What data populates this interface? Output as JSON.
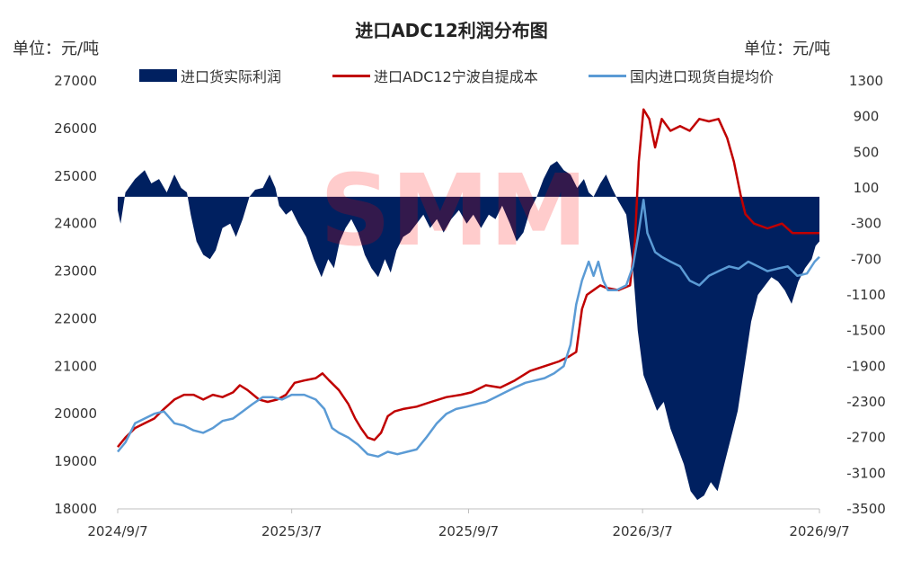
{
  "chart_data": {
    "type": "area+line",
    "title": "进口ADC12利润分布图",
    "ylabel_left": "单位：元/吨",
    "ylabel_right": "单位：元/吨",
    "x_tick_labels": [
      "2024/9/7",
      "2025/3/7",
      "2025/9/7",
      "2026/3/7",
      "2026/9/7"
    ],
    "x_range": [
      "2024-09-07",
      "2026-09-07"
    ],
    "ylim_left": [
      18000,
      27000
    ],
    "yticks_left": [
      18000,
      19000,
      20000,
      21000,
      22000,
      23000,
      24000,
      25000,
      26000,
      27000
    ],
    "ylim_right": [
      -3500,
      1300
    ],
    "yticks_right": [
      -3500,
      -3100,
      -2700,
      -2300,
      -1900,
      -1500,
      -1100,
      -700,
      -300,
      100,
      500,
      900,
      1300
    ],
    "legend_position": "top",
    "series": [
      {
        "name": "进口货实际利润",
        "kind": "area",
        "axis": "right",
        "color": "#002060",
        "points": [
          [
            "2024-09-07",
            -150
          ],
          [
            "2024-09-10",
            -300
          ],
          [
            "2024-09-15",
            50
          ],
          [
            "2024-09-25",
            200
          ],
          [
            "2024-10-05",
            300
          ],
          [
            "2024-10-12",
            150
          ],
          [
            "2024-10-20",
            200
          ],
          [
            "2024-10-28",
            50
          ],
          [
            "2024-11-05",
            250
          ],
          [
            "2024-11-12",
            100
          ],
          [
            "2024-11-18",
            50
          ],
          [
            "2024-11-22",
            -200
          ],
          [
            "2024-11-28",
            -500
          ],
          [
            "2024-12-05",
            -650
          ],
          [
            "2024-12-12",
            -700
          ],
          [
            "2024-12-18",
            -600
          ],
          [
            "2024-12-25",
            -350
          ],
          [
            "2025-01-02",
            -300
          ],
          [
            "2025-01-08",
            -450
          ],
          [
            "2025-01-15",
            -250
          ],
          [
            "2025-01-22",
            0
          ],
          [
            "2025-01-28",
            80
          ],
          [
            "2025-02-05",
            100
          ],
          [
            "2025-02-12",
            250
          ],
          [
            "2025-02-18",
            100
          ],
          [
            "2025-02-22",
            -100
          ],
          [
            "2025-03-01",
            -200
          ],
          [
            "2025-03-07",
            -150
          ],
          [
            "2025-03-14",
            -300
          ],
          [
            "2025-03-22",
            -450
          ],
          [
            "2025-03-30",
            -700
          ],
          [
            "2025-04-07",
            -900
          ],
          [
            "2025-04-14",
            -700
          ],
          [
            "2025-04-20",
            -800
          ],
          [
            "2025-04-26",
            -500
          ],
          [
            "2025-05-02",
            -350
          ],
          [
            "2025-05-08",
            -250
          ],
          [
            "2025-05-15",
            -400
          ],
          [
            "2025-05-22",
            -650
          ],
          [
            "2025-05-29",
            -800
          ],
          [
            "2025-06-05",
            -900
          ],
          [
            "2025-06-12",
            -700
          ],
          [
            "2025-06-18",
            -850
          ],
          [
            "2025-06-24",
            -600
          ],
          [
            "2025-07-01",
            -450
          ],
          [
            "2025-07-08",
            -400
          ],
          [
            "2025-07-15",
            -300
          ],
          [
            "2025-07-22",
            -200
          ],
          [
            "2025-07-29",
            -350
          ],
          [
            "2025-08-05",
            -250
          ],
          [
            "2025-08-12",
            -400
          ],
          [
            "2025-08-20",
            -250
          ],
          [
            "2025-08-28",
            -150
          ],
          [
            "2025-09-05",
            -300
          ],
          [
            "2025-09-12",
            -200
          ],
          [
            "2025-09-20",
            -350
          ],
          [
            "2025-09-28",
            -200
          ],
          [
            "2025-10-05",
            -250
          ],
          [
            "2025-10-12",
            -100
          ],
          [
            "2025-10-20",
            -300
          ],
          [
            "2025-10-27",
            -500
          ],
          [
            "2025-11-03",
            -400
          ],
          [
            "2025-11-10",
            -150
          ],
          [
            "2025-11-17",
            0
          ],
          [
            "2025-11-24",
            200
          ],
          [
            "2025-12-01",
            350
          ],
          [
            "2025-12-08",
            400
          ],
          [
            "2025-12-15",
            300
          ],
          [
            "2025-12-22",
            250
          ],
          [
            "2025-12-29",
            100
          ],
          [
            "2026-01-05",
            200
          ],
          [
            "2026-01-10",
            50
          ],
          [
            "2026-01-15",
            0
          ],
          [
            "2026-01-22",
            150
          ],
          [
            "2026-01-28",
            250
          ],
          [
            "2026-02-03",
            100
          ],
          [
            "2026-02-10",
            -50
          ],
          [
            "2026-02-18",
            -200
          ],
          [
            "2026-02-25",
            -800
          ],
          [
            "2026-03-02",
            -1500
          ],
          [
            "2026-03-08",
            -2000
          ],
          [
            "2026-03-15",
            -2200
          ],
          [
            "2026-03-22",
            -2400
          ],
          [
            "2026-03-29",
            -2300
          ],
          [
            "2026-04-05",
            -2600
          ],
          [
            "2026-04-12",
            -2800
          ],
          [
            "2026-04-19",
            -3000
          ],
          [
            "2026-04-26",
            -3300
          ],
          [
            "2026-05-03",
            -3400
          ],
          [
            "2026-05-10",
            -3350
          ],
          [
            "2026-05-17",
            -3200
          ],
          [
            "2026-05-24",
            -3300
          ],
          [
            "2026-05-31",
            -3000
          ],
          [
            "2026-06-07",
            -2700
          ],
          [
            "2026-06-14",
            -2400
          ],
          [
            "2026-06-21",
            -1900
          ],
          [
            "2026-06-28",
            -1400
          ],
          [
            "2026-07-05",
            -1100
          ],
          [
            "2026-07-12",
            -1000
          ],
          [
            "2026-07-19",
            -900
          ],
          [
            "2026-07-26",
            -950
          ],
          [
            "2026-08-02",
            -1050
          ],
          [
            "2026-08-09",
            -1200
          ],
          [
            "2026-08-16",
            -950
          ],
          [
            "2026-08-23",
            -800
          ],
          [
            "2026-08-30",
            -700
          ],
          [
            "2026-09-03",
            -550
          ],
          [
            "2026-09-07",
            -500
          ]
        ]
      },
      {
        "name": "进口ADC12宁波自提成本",
        "kind": "line",
        "axis": "left",
        "color": "#c00000",
        "points": [
          [
            "2024-09-07",
            19300
          ],
          [
            "2024-09-15",
            19500
          ],
          [
            "2024-09-25",
            19700
          ],
          [
            "2024-10-05",
            19800
          ],
          [
            "2024-10-15",
            19900
          ],
          [
            "2024-10-25",
            20100
          ],
          [
            "2024-11-05",
            20300
          ],
          [
            "2024-11-15",
            20400
          ],
          [
            "2024-11-25",
            20400
          ],
          [
            "2024-12-05",
            20300
          ],
          [
            "2024-12-15",
            20400
          ],
          [
            "2024-12-25",
            20350
          ],
          [
            "2025-01-05",
            20450
          ],
          [
            "2025-01-12",
            20600
          ],
          [
            "2025-01-20",
            20500
          ],
          [
            "2025-02-01",
            20300
          ],
          [
            "2025-02-10",
            20250
          ],
          [
            "2025-02-20",
            20300
          ],
          [
            "2025-03-01",
            20400
          ],
          [
            "2025-03-10",
            20650
          ],
          [
            "2025-03-20",
            20700
          ],
          [
            "2025-04-01",
            20750
          ],
          [
            "2025-04-08",
            20850
          ],
          [
            "2025-04-15",
            20700
          ],
          [
            "2025-04-25",
            20500
          ],
          [
            "2025-05-05",
            20200
          ],
          [
            "2025-05-12",
            19900
          ],
          [
            "2025-05-18",
            19700
          ],
          [
            "2025-05-25",
            19500
          ],
          [
            "2025-06-01",
            19450
          ],
          [
            "2025-06-08",
            19600
          ],
          [
            "2025-06-15",
            19950
          ],
          [
            "2025-06-22",
            20050
          ],
          [
            "2025-07-01",
            20100
          ],
          [
            "2025-07-15",
            20150
          ],
          [
            "2025-07-30",
            20250
          ],
          [
            "2025-08-15",
            20350
          ],
          [
            "2025-08-30",
            20400
          ],
          [
            "2025-09-10",
            20450
          ],
          [
            "2025-09-25",
            20600
          ],
          [
            "2025-10-10",
            20550
          ],
          [
            "2025-10-25",
            20700
          ],
          [
            "2025-11-10",
            20900
          ],
          [
            "2025-11-25",
            21000
          ],
          [
            "2025-12-10",
            21100
          ],
          [
            "2025-12-20",
            21200
          ],
          [
            "2025-12-28",
            21300
          ],
          [
            "2026-01-03",
            22200
          ],
          [
            "2026-01-08",
            22500
          ],
          [
            "2026-01-15",
            22600
          ],
          [
            "2026-01-22",
            22700
          ],
          [
            "2026-01-28",
            22650
          ],
          [
            "2026-02-10",
            22600
          ],
          [
            "2026-02-22",
            22700
          ],
          [
            "2026-02-27",
            23600
          ],
          [
            "2026-03-03",
            25300
          ],
          [
            "2026-03-08",
            26400
          ],
          [
            "2026-03-14",
            26200
          ],
          [
            "2026-03-20",
            25600
          ],
          [
            "2026-03-27",
            26200
          ],
          [
            "2026-04-05",
            25950
          ],
          [
            "2026-04-15",
            26050
          ],
          [
            "2026-04-25",
            25950
          ],
          [
            "2026-05-05",
            26200
          ],
          [
            "2026-05-15",
            26150
          ],
          [
            "2026-05-25",
            26200
          ],
          [
            "2026-06-03",
            25800
          ],
          [
            "2026-06-10",
            25300
          ],
          [
            "2026-06-17",
            24600
          ],
          [
            "2026-06-22",
            24200
          ],
          [
            "2026-07-01",
            24000
          ],
          [
            "2026-07-15",
            23900
          ],
          [
            "2026-07-30",
            24000
          ],
          [
            "2026-08-10",
            23800
          ],
          [
            "2026-08-25",
            23800
          ],
          [
            "2026-09-07",
            23800
          ]
        ]
      },
      {
        "name": "国内进口现货自提均价",
        "kind": "line",
        "axis": "left",
        "color": "#5b9bd5",
        "points": [
          [
            "2024-09-07",
            19200
          ],
          [
            "2024-09-15",
            19400
          ],
          [
            "2024-09-25",
            19800
          ],
          [
            "2024-10-05",
            19900
          ],
          [
            "2024-10-15",
            20000
          ],
          [
            "2024-10-25",
            20050
          ],
          [
            "2024-11-05",
            19800
          ],
          [
            "2024-11-15",
            19750
          ],
          [
            "2024-11-25",
            19650
          ],
          [
            "2024-12-05",
            19600
          ],
          [
            "2024-12-15",
            19700
          ],
          [
            "2024-12-25",
            19850
          ],
          [
            "2025-01-05",
            19900
          ],
          [
            "2025-01-15",
            20050
          ],
          [
            "2025-01-25",
            20200
          ],
          [
            "2025-02-05",
            20350
          ],
          [
            "2025-02-15",
            20350
          ],
          [
            "2025-02-25",
            20300
          ],
          [
            "2025-03-07",
            20400
          ],
          [
            "2025-03-20",
            20400
          ],
          [
            "2025-04-01",
            20300
          ],
          [
            "2025-04-10",
            20100
          ],
          [
            "2025-04-18",
            19700
          ],
          [
            "2025-04-25",
            19600
          ],
          [
            "2025-05-05",
            19500
          ],
          [
            "2025-05-15",
            19350
          ],
          [
            "2025-05-25",
            19150
          ],
          [
            "2025-06-05",
            19100
          ],
          [
            "2025-06-15",
            19200
          ],
          [
            "2025-06-25",
            19150
          ],
          [
            "2025-07-05",
            19200
          ],
          [
            "2025-07-15",
            19250
          ],
          [
            "2025-07-25",
            19500
          ],
          [
            "2025-08-05",
            19800
          ],
          [
            "2025-08-15",
            20000
          ],
          [
            "2025-08-25",
            20100
          ],
          [
            "2025-09-05",
            20150
          ],
          [
            "2025-09-15",
            20200
          ],
          [
            "2025-09-25",
            20250
          ],
          [
            "2025-10-05",
            20350
          ],
          [
            "2025-10-15",
            20450
          ],
          [
            "2025-10-25",
            20550
          ],
          [
            "2025-11-05",
            20650
          ],
          [
            "2025-11-15",
            20700
          ],
          [
            "2025-11-25",
            20750
          ],
          [
            "2025-12-05",
            20850
          ],
          [
            "2025-12-15",
            21000
          ],
          [
            "2025-12-22",
            21450
          ],
          [
            "2025-12-28",
            22300
          ],
          [
            "2026-01-03",
            22800
          ],
          [
            "2026-01-10",
            23200
          ],
          [
            "2026-01-15",
            22900
          ],
          [
            "2026-01-20",
            23200
          ],
          [
            "2026-01-25",
            22800
          ],
          [
            "2026-01-30",
            22600
          ],
          [
            "2026-02-08",
            22600
          ],
          [
            "2026-02-18",
            22700
          ],
          [
            "2026-02-25",
            23100
          ],
          [
            "2026-03-02",
            23700
          ],
          [
            "2026-03-08",
            24500
          ],
          [
            "2026-03-12",
            23800
          ],
          [
            "2026-03-20",
            23400
          ],
          [
            "2026-03-27",
            23300
          ],
          [
            "2026-04-05",
            23200
          ],
          [
            "2026-04-15",
            23100
          ],
          [
            "2026-04-25",
            22800
          ],
          [
            "2026-05-05",
            22700
          ],
          [
            "2026-05-15",
            22900
          ],
          [
            "2026-05-25",
            23000
          ],
          [
            "2026-06-05",
            23100
          ],
          [
            "2026-06-15",
            23050
          ],
          [
            "2026-06-25",
            23200
          ],
          [
            "2026-07-05",
            23100
          ],
          [
            "2026-07-15",
            23000
          ],
          [
            "2026-07-25",
            23050
          ],
          [
            "2026-08-05",
            23100
          ],
          [
            "2026-08-15",
            22900
          ],
          [
            "2026-08-25",
            22950
          ],
          [
            "2026-09-02",
            23200
          ],
          [
            "2026-09-07",
            23300
          ]
        ]
      }
    ]
  },
  "watermark": "SMM"
}
